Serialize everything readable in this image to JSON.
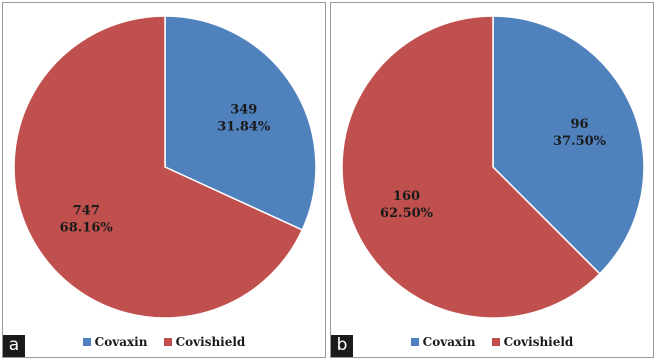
{
  "colors": {
    "covaxin": "#4f81bd",
    "covishield": "#c0504d"
  },
  "panels": [
    {
      "tag": "a",
      "legend": [
        "Covaxin",
        "Covishield"
      ]
    },
    {
      "tag": "b",
      "legend": [
        "Covaxin",
        "Covishield"
      ]
    }
  ],
  "chart_data": [
    {
      "type": "pie",
      "categories": [
        "Covaxin",
        "Covishield"
      ],
      "values": [
        349,
        747
      ],
      "labels": [
        [
          "349",
          "31.84%"
        ],
        [
          "747",
          "68.16%"
        ]
      ],
      "legend_position": "bottom"
    },
    {
      "type": "pie",
      "categories": [
        "Covaxin",
        "Covishield"
      ],
      "values": [
        96,
        160
      ],
      "labels": [
        [
          "96",
          "37.50%"
        ],
        [
          "160",
          "62.50%"
        ]
      ],
      "legend_position": "bottom"
    }
  ]
}
